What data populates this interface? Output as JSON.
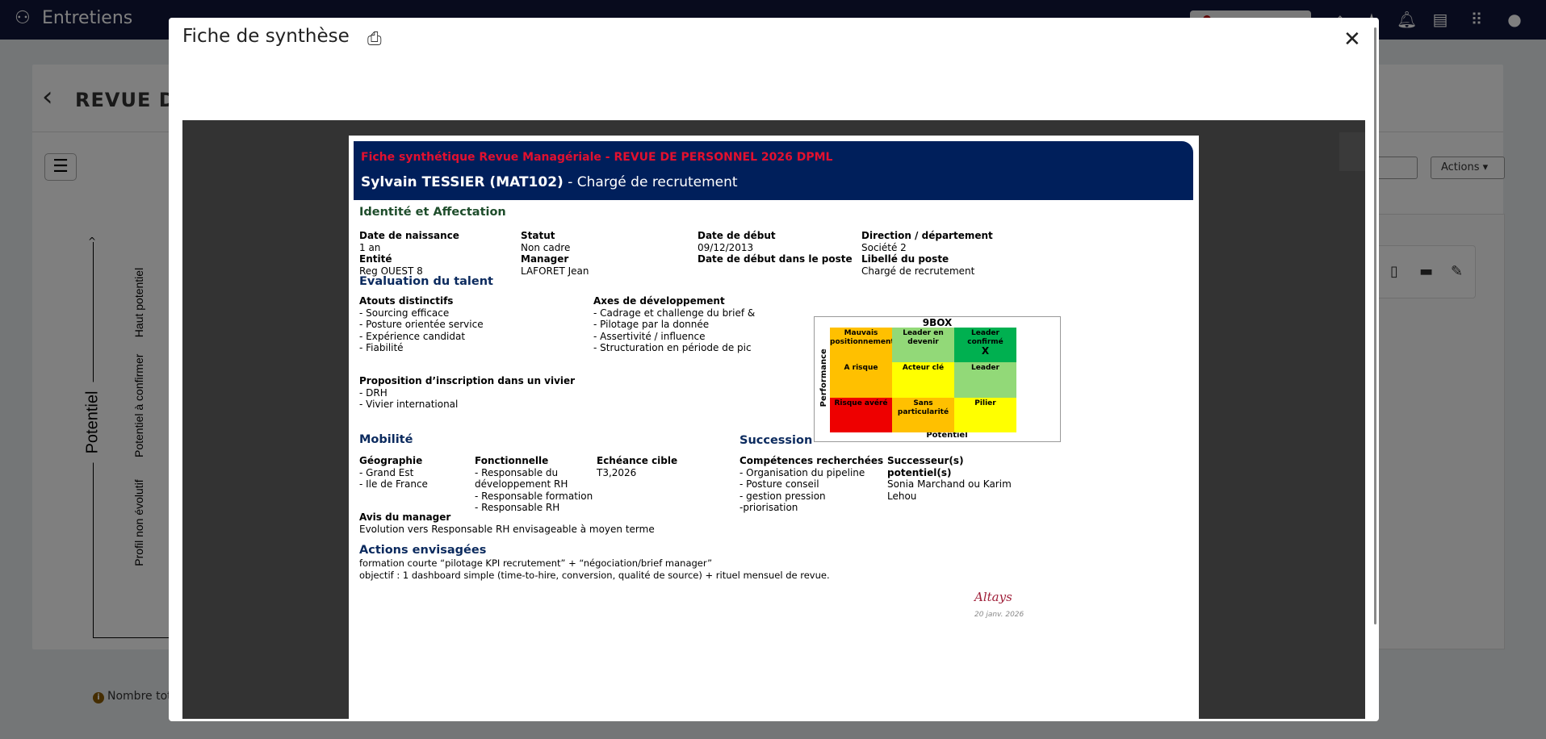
{
  "app": {
    "name": "Entretiens",
    "page_title": "REVUE DE",
    "actions_label": "Actions",
    "total_label": "Nombre tota"
  },
  "axis": {
    "title": "Potentiel",
    "levels": [
      "Haut potentiel",
      "Potentiel à confirmer",
      "Profil non évolutif"
    ]
  },
  "topbar_icons": [
    "home-icon",
    "star-icon",
    "bell-icon",
    "book-icon",
    "apps-grid-icon",
    "user-avatar-icon"
  ],
  "modal": {
    "title": "Fiche de synthèse",
    "close": "✕"
  },
  "doc": {
    "title": "Fiche synthétique Revue Managériale - REVUE DE PERSONNEL 2026 DPML",
    "name": "Sylvain TESSIER (MAT102)",
    "role": " - Chargé de recrutement",
    "identity": {
      "heading": "Identité et Affectation",
      "fields": [
        {
          "label": "Date de naissance",
          "value": "1 an"
        },
        {
          "label": "Statut",
          "value": "Non cadre"
        },
        {
          "label": "Date de début",
          "value": "09/12/2013"
        },
        {
          "label": "Direction / département",
          "value": "Société 2"
        },
        {
          "label": "Entité",
          "value": "Reg OUEST 8"
        },
        {
          "label": "Manager",
          "value": "LAFORET Jean"
        },
        {
          "label": "Date de début dans le poste",
          "value": ""
        },
        {
          "label": "Libellé du poste",
          "value": "Chargé de recrutement"
        }
      ]
    },
    "talent": {
      "heading": "Evaluation du talent",
      "atouts": {
        "label": "Atouts distinctifs",
        "items": [
          "- Sourcing efficace",
          "- Posture orientée service",
          "- Expérience candidat",
          "- Fiabilité"
        ]
      },
      "axes": {
        "label": "Axes de développement",
        "items": [
          "- Cadrage et challenge du brief &",
          "- Pilotage par la donnée",
          "- Assertivité / influence",
          "- Structuration en période de pic"
        ]
      },
      "vivier": {
        "label": "Proposition d’inscription dans un vivier",
        "items": [
          "- DRH",
          "- Vivier international"
        ]
      }
    },
    "ninebox": {
      "title": "9BOX",
      "xlabel": "Potentiel",
      "ylabel": "Performance",
      "marker": "X",
      "cells": [
        {
          "label": "Mauvais positionnement",
          "color": "#ffc000"
        },
        {
          "label": "Leader en devenir",
          "color": "#92d978"
        },
        {
          "label": "Leader confirmé",
          "color": "#00b050",
          "marked": true
        },
        {
          "label": "A risque",
          "color": "#ffc000"
        },
        {
          "label": "Acteur clé",
          "color": "#ffff00"
        },
        {
          "label": "Leader",
          "color": "#92d978"
        },
        {
          "label": "Risque avéré",
          "color": "#ee0000"
        },
        {
          "label": "Sans particularité",
          "color": "#ffc000"
        },
        {
          "label": "Pilier",
          "color": "#ffff00"
        }
      ]
    },
    "mobilite": {
      "heading": "Mobilité",
      "geo": {
        "label": "Géographie",
        "items": [
          "- Grand Est",
          "- Ile de France"
        ]
      },
      "fonc": {
        "label": "Fonctionnelle",
        "items": [
          "- Responsable du",
          "développement RH",
          "- Responsable formation",
          "- Responsable RH"
        ]
      },
      "echeance": {
        "label": "Echéance cible",
        "value": "T3,2026"
      },
      "avis": {
        "label": "Avis du manager",
        "value": "Evolution vers Responsable RH envisageable à moyen terme"
      }
    },
    "succession": {
      "heading": "Succession",
      "comp": {
        "label": "Compétences recherchées",
        "items": [
          "- Organisation du pipeline",
          "- Posture conseil",
          "- gestion pression",
          "-priorisation"
        ]
      },
      "succ": {
        "label": "Successeur(s) potentiel(s)",
        "value": "Sonia Marchand ou Karim Lehou"
      }
    },
    "actions": {
      "heading": "Actions envisagées",
      "lines": [
        "formation courte “pilotage KPI recrutement” + “négociation/brief manager”",
        "objectif : 1 dashboard simple (time-to-hire, conversion, qualité de source) + rituel mensuel de revue."
      ]
    },
    "signature": "Altays",
    "date": "20 janv. 2026"
  }
}
